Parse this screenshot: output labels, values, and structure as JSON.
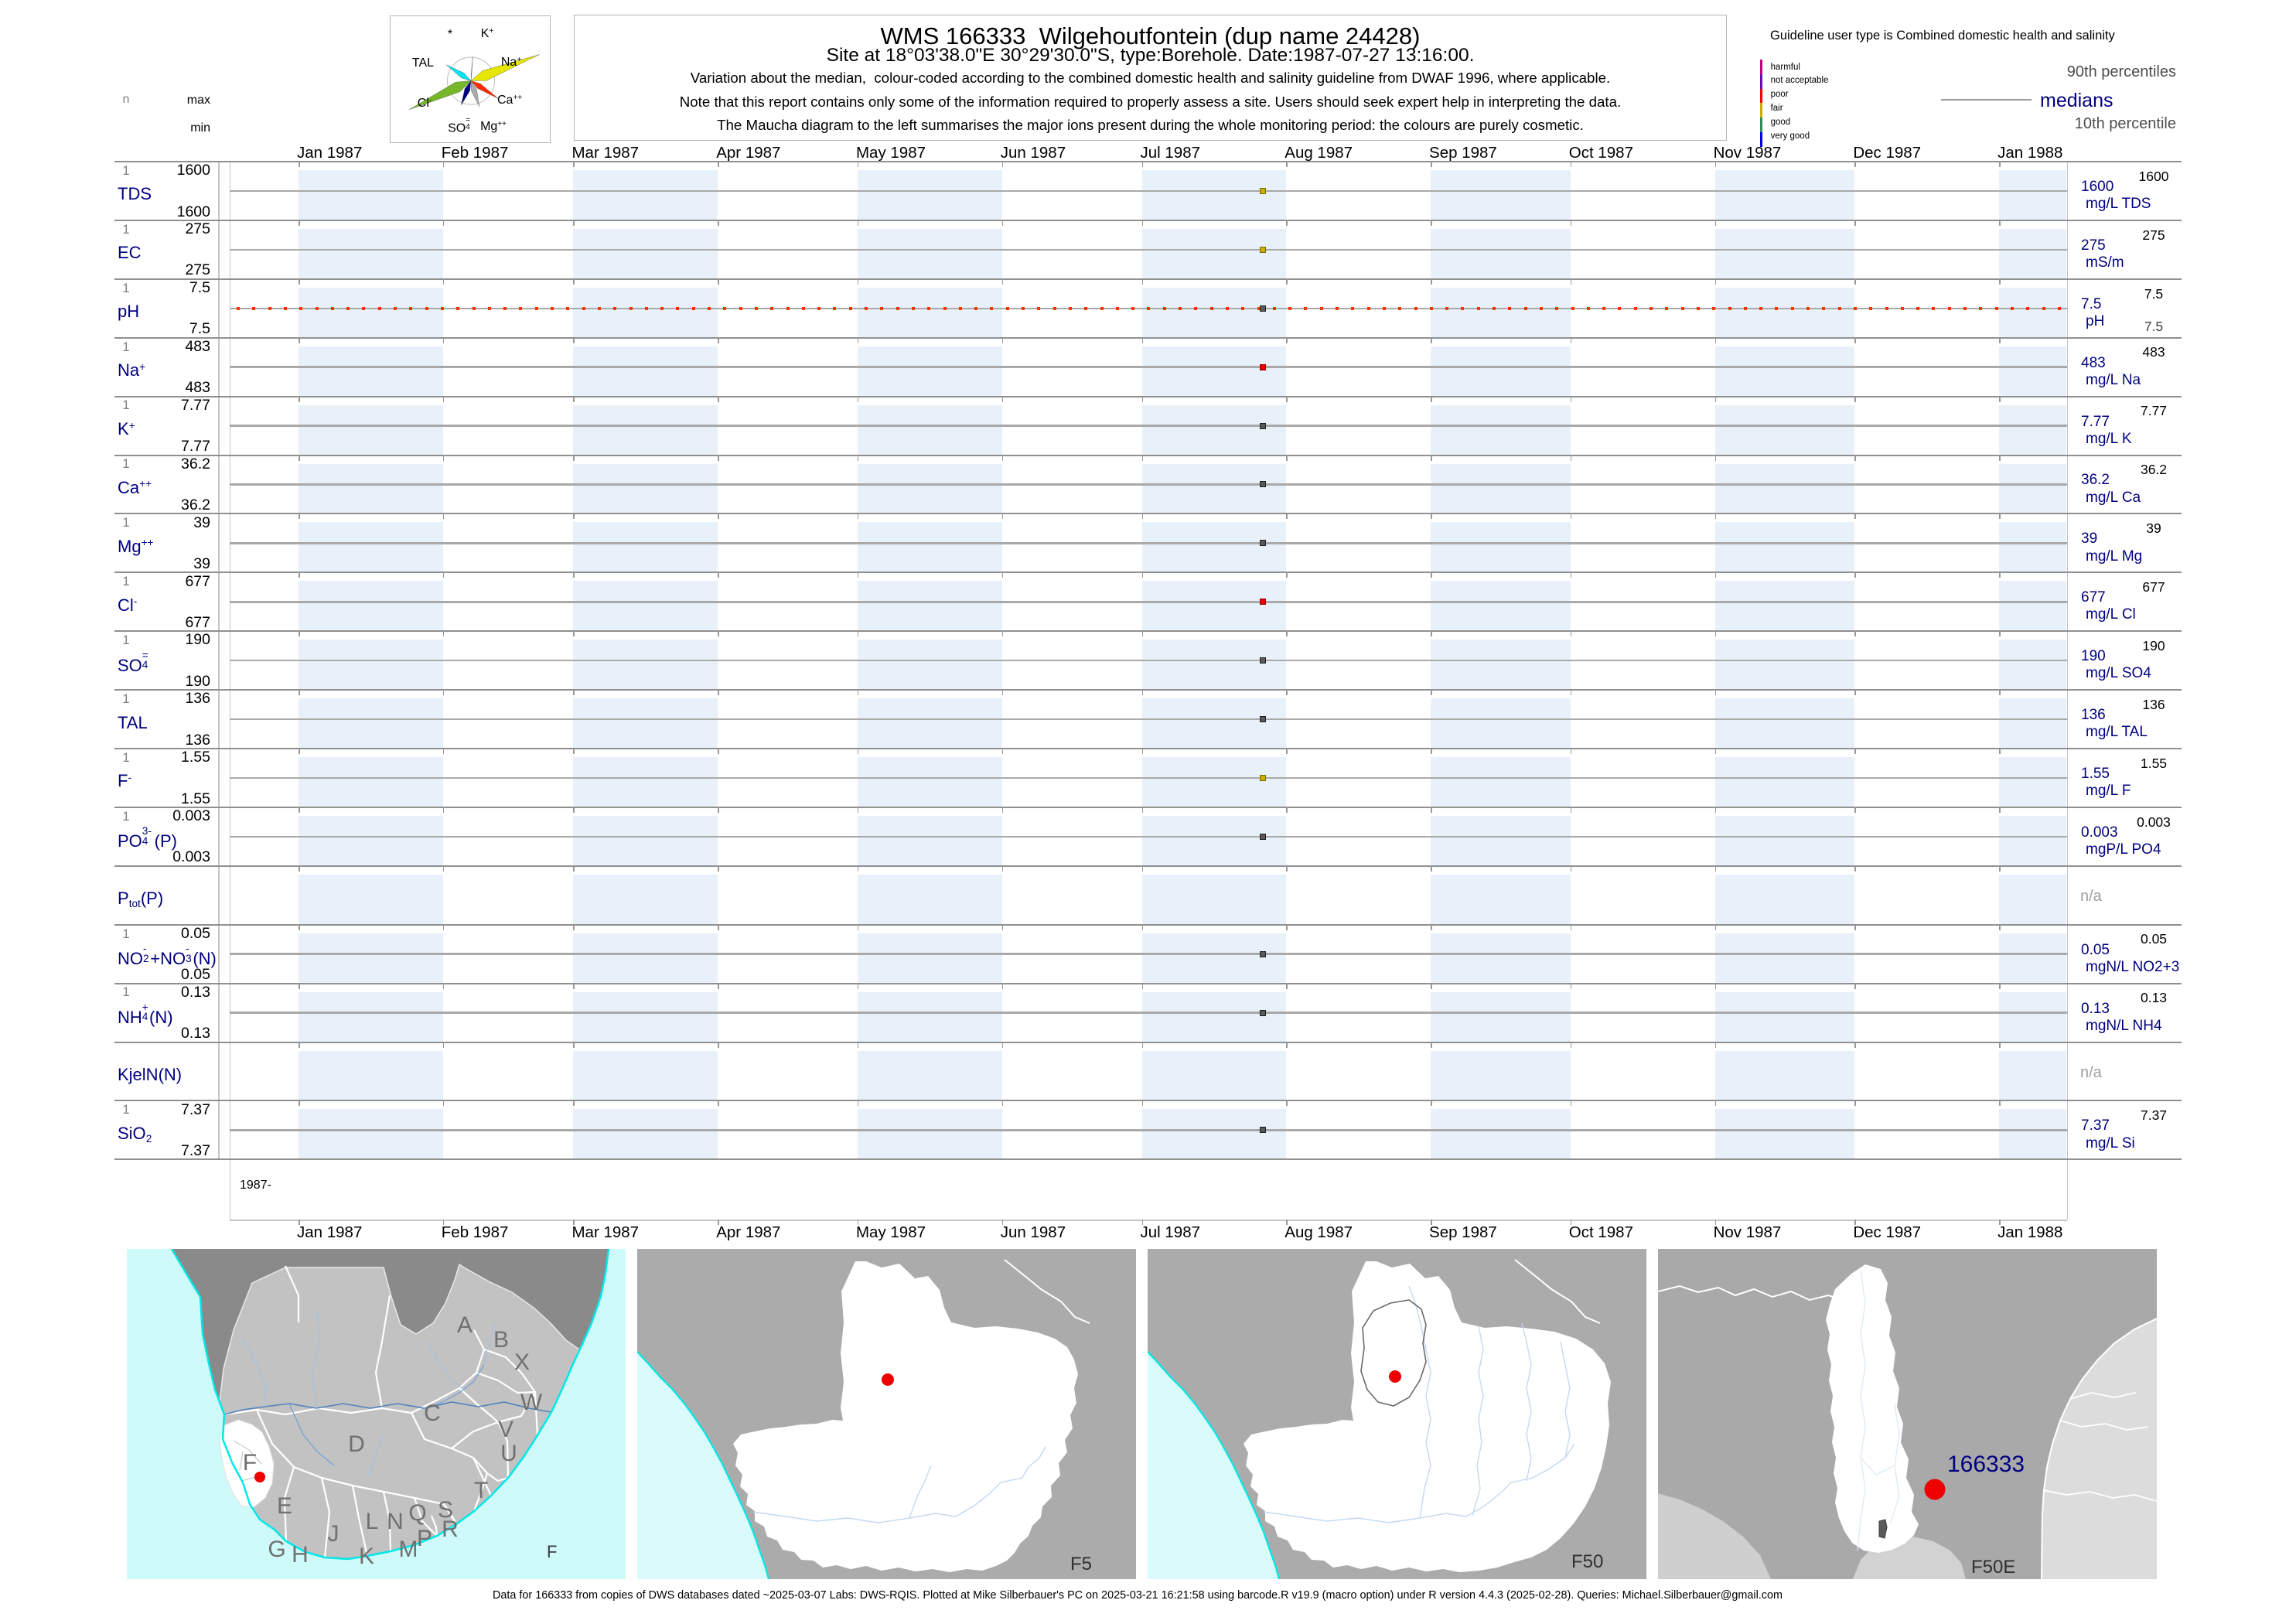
{
  "header": {
    "stats_header": {
      "n": "n",
      "max": "max",
      "min": "min"
    },
    "maucha": {
      "ions": [
        {
          "label_html": "*",
          "color": "#ffffff",
          "len": 0
        },
        {
          "label_html": "K<sup>+</sup>",
          "color": "#9467bd",
          "len": 31
        },
        {
          "label_html": "Na<sup>+</sup>",
          "color": "#e6e600",
          "len": 95
        },
        {
          "label_html": "Ca<sup>++</sup>",
          "color": "#ff2a00",
          "len": 42
        },
        {
          "label_html": "Mg<sup>++</sup>",
          "color": "#ababab",
          "len": 35
        },
        {
          "label_html": "SO<span class=\"stk\"><span class=\"s-sup\">=</span><span class=\"s-sub\">4</span></span>",
          "color": "#000080",
          "len": 34
        },
        {
          "label_html": "Cl<sup>-</sup>",
          "color": "#76b82a",
          "len": 88
        },
        {
          "label_html": "TAL",
          "color": "#00e5ee",
          "len": 38
        }
      ]
    },
    "title_box": {
      "title": "WMS 166333  Wilgehoutfontein (dup name 24428)",
      "subtitle": "Site at 18°03'38.0\"E 30°29'30.0\"S, type:Borehole. Date:1987-07-27 13:16:00.",
      "note1": "Variation about the median,  colour-coded according to the combined domestic health and salinity guideline from DWAF 1996, where applicable.",
      "note2": "Note that this report contains only some of the information required to properly assess a site. Users should seek expert help in interpreting the data.",
      "note3": "The Maucha diagram to the left summarises the major ions present during the whole monitoring period: the colours are purely cosmetic."
    },
    "guideline_note": "Guideline user type is Combined domestic health and salinity",
    "legend": {
      "classes": [
        {
          "label": "harmful",
          "color": "#c0007f"
        },
        {
          "label": "not acceptable",
          "color": "#6a0dad"
        },
        {
          "label": "poor",
          "color": "#ff0000"
        },
        {
          "label": "fair",
          "color": "#cdad00"
        },
        {
          "label": "good",
          "color": "#2e8b57"
        },
        {
          "label": "very good",
          "color": "#0000ee"
        }
      ],
      "p90_label": "90th percentiles",
      "median_label": "medians",
      "p10_label": "10th percentile"
    }
  },
  "chart_data": {
    "type": "barcode-timeline",
    "title": "WMS 166333  Wilgehoutfontein (dup name 24428)",
    "x_axis": {
      "months": [
        "Jan 1987",
        "Feb 1987",
        "Mar 1987",
        "Apr 1987",
        "May 1987",
        "Jun 1987",
        "Jul 1987",
        "Aug 1987",
        "Sep 1987",
        "Oct 1987",
        "Nov 1987",
        "Dec 1987",
        "Jan 1988"
      ],
      "start_label": "1987-"
    },
    "sample_date": "1987-07-27",
    "status_colors": {
      "fair": {
        "fill": "#cdad00",
        "edge": "#6f6f00"
      },
      "poor": {
        "fill": "#ee0000",
        "edge": "#8b0000"
      },
      "none": {
        "fill": "#595959",
        "edge": "#1f1f1f"
      }
    },
    "ph_guideline_color": "#ff3300",
    "band_color": "#e8f1fa",
    "rows": [
      {
        "param_html": "TDS",
        "param_text": "TDS",
        "n": "1",
        "max": "1600",
        "min": "1600",
        "p90": "1600",
        "median": "1600",
        "unit": "mg/L TDS",
        "p10": "",
        "status": "fair",
        "has_line": true
      },
      {
        "param_html": "EC",
        "param_text": "EC",
        "n": "1",
        "max": "275",
        "min": "275",
        "p90": "275",
        "median": "275",
        "unit": "mS/m",
        "p10": "",
        "status": "fair",
        "has_line": true
      },
      {
        "param_html": "pH",
        "param_text": "pH",
        "n": "1",
        "max": "7.5",
        "min": "7.5",
        "p90": "7.5",
        "median": "7.5",
        "unit": "pH",
        "p10": "7.5",
        "status": "none",
        "has_line": true,
        "guideline_dots": true
      },
      {
        "param_html": "Na<sup>+</sup>",
        "param_text": "Na+",
        "n": "1",
        "max": "483",
        "min": "483",
        "p90": "483",
        "median": "483",
        "unit": "mg/L Na",
        "p10": "",
        "status": "poor",
        "has_line": true
      },
      {
        "param_html": "K<sup>+</sup>",
        "param_text": "K+",
        "n": "1",
        "max": "7.77",
        "min": "7.77",
        "p90": "7.77",
        "median": "7.77",
        "unit": "mg/L K",
        "p10": "",
        "status": "none",
        "has_line": true
      },
      {
        "param_html": "Ca<sup>++</sup>",
        "param_text": "Ca++",
        "n": "1",
        "max": "36.2",
        "min": "36.2",
        "p90": "36.2",
        "median": "36.2",
        "unit": "mg/L Ca",
        "p10": "",
        "status": "none",
        "has_line": true
      },
      {
        "param_html": "Mg<sup>++</sup>",
        "param_text": "Mg++",
        "n": "1",
        "max": "39",
        "min": "39",
        "p90": "39",
        "median": "39",
        "unit": "mg/L Mg",
        "p10": "",
        "status": "none",
        "has_line": true
      },
      {
        "param_html": "Cl<sup>-</sup>",
        "param_text": "Cl-",
        "n": "1",
        "max": "677",
        "min": "677",
        "p90": "677",
        "median": "677",
        "unit": "mg/L Cl",
        "p10": "",
        "status": "poor",
        "has_line": true
      },
      {
        "param_html": "SO<span class=\"stk\"><span class=\"s-sup\">=</span><span class=\"s-sub\">4</span></span>",
        "param_text": "SO4=",
        "n": "1",
        "max": "190",
        "min": "190",
        "p90": "190",
        "median": "190",
        "unit": "mg/L SO4",
        "p10": "",
        "status": "none",
        "has_line": true
      },
      {
        "param_html": "TAL",
        "param_text": "TAL",
        "n": "1",
        "max": "136",
        "min": "136",
        "p90": "136",
        "median": "136",
        "unit": "mg/L TAL",
        "p10": "",
        "status": "none",
        "has_line": true
      },
      {
        "param_html": "F<sup>-</sup>",
        "param_text": "F-",
        "n": "1",
        "max": "1.55",
        "min": "1.55",
        "p90": "1.55",
        "median": "1.55",
        "unit": "mg/L F",
        "p10": "",
        "status": "fair",
        "has_line": true
      },
      {
        "param_html": "PO<span class=\"stk wide\"><span class=\"s-sup\">3-</span><span class=\"s-sub\">4</span></span>(P)",
        "param_text": "PO4(3-)(P)",
        "n": "1",
        "max": "0.003",
        "min": "0.003",
        "p90": "0.003",
        "median": "0.003",
        "unit": "mgP/L PO4",
        "p10": "",
        "status": "none",
        "has_line": true
      },
      {
        "param_html": "P<sub>tot</sub>(P)",
        "param_text": "Ptot(P)",
        "n": "",
        "max": "",
        "min": "",
        "p90": "",
        "median": "",
        "unit": "",
        "p10": "",
        "status": "na",
        "na_label": "n/a",
        "has_line": false
      },
      {
        "param_html": "NO<span class=\"stk\"><span class=\"s-sup\">-</span><span class=\"s-sub\">2</span></span>+NO<span class=\"stk\"><span class=\"s-sup\">-</span><span class=\"s-sub\">3</span></span>(N)",
        "param_text": "NO2-+NO3-(N)",
        "n": "1",
        "max": "0.05",
        "min": "0.05",
        "p90": "0.05",
        "median": "0.05",
        "unit": "mgN/L NO2+3",
        "p10": "",
        "status": "none",
        "has_line": true
      },
      {
        "param_html": "NH<span class=\"stk\"><span class=\"s-sup\">+</span><span class=\"s-sub\">4</span></span>(N)",
        "param_text": "NH4+(N)",
        "n": "1",
        "max": "0.13",
        "min": "0.13",
        "p90": "0.13",
        "median": "0.13",
        "unit": "mgN/L NH4",
        "p10": "",
        "status": "none",
        "has_line": true
      },
      {
        "param_html": "KjelN(N)",
        "param_text": "KjelN(N)",
        "n": "",
        "max": "",
        "min": "",
        "p90": "",
        "median": "",
        "unit": "",
        "p10": "",
        "status": "na",
        "na_label": "n/a",
        "has_line": false
      },
      {
        "param_html": "SiO<sub>2</sub>",
        "param_text": "SiO2",
        "n": "1",
        "max": "7.37",
        "min": "7.37",
        "p90": "7.37",
        "median": "7.37",
        "unit": "mg/L Si",
        "p10": "",
        "status": "none",
        "has_line": true
      }
    ]
  },
  "maps": {
    "region_letters": [
      "A",
      "B",
      "X",
      "W",
      "C",
      "V",
      "U",
      "D",
      "F",
      "T",
      "E",
      "S",
      "Q",
      "L",
      "N",
      "R",
      "J",
      "P",
      "G",
      "M",
      "H",
      "K"
    ],
    "panels": [
      {
        "corner_label": "F"
      },
      {
        "corner_label": "F5"
      },
      {
        "corner_label": "F50"
      },
      {
        "corner_label": "F50E",
        "site_label": "166333"
      }
    ]
  },
  "footer": "Data for 166333 from copies of DWS databases dated ~2025-03-07 Labs: DWS-RQIS. Plotted at Mike Silberbauer's PC on 2025-03-21 16:21:58 using barcode.R v19.9 (macro option) under R version 4.4.3 (2025-02-28). Queries: Michael.Silberbauer@gmail.com"
}
